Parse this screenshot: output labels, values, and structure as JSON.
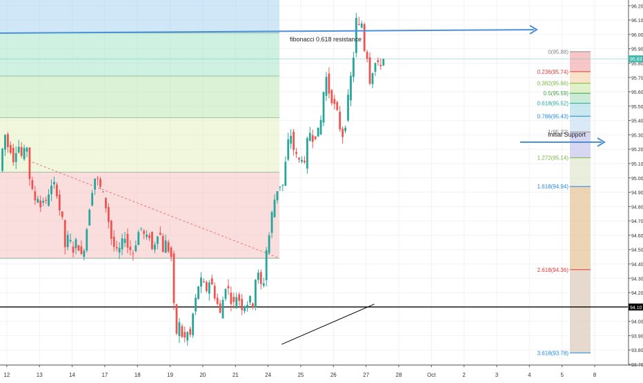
{
  "chart_data": {
    "type": "candlestick",
    "colors": {
      "up": "#26a69a",
      "down": "#ef5350",
      "trendline": "#000000",
      "arrow": "#4a90d9",
      "support_line": "#000000",
      "last_price_line": "#3fb8af",
      "dashed_trend": "#e57373"
    },
    "y_axis": {
      "ylim": [
        93.7,
        96.24
      ],
      "ticks": [
        "96.20",
        "96.10",
        "96.00",
        "95.90",
        "95.80",
        "95.70",
        "95.60",
        "95.50",
        "95.40",
        "95.30",
        "95.20",
        "95.10",
        "95.00",
        "94.90",
        "94.80",
        "94.70",
        "94.60",
        "94.50",
        "94.40",
        "94.30",
        "94.20",
        "94.10",
        "94.00",
        "93.90",
        "93.80",
        "93.70"
      ]
    },
    "x_axis": {
      "ticks": [
        {
          "label": "12",
          "i": 2
        },
        {
          "label": "13",
          "i": 14
        },
        {
          "label": "14",
          "i": 26
        },
        {
          "label": "17",
          "i": 38
        },
        {
          "label": "18",
          "i": 50
        },
        {
          "label": "19",
          "i": 62
        },
        {
          "label": "20",
          "i": 74
        },
        {
          "label": "21",
          "i": 86
        },
        {
          "label": "24",
          "i": 98
        },
        {
          "label": "25",
          "i": 110
        },
        {
          "label": "26",
          "i": 122
        },
        {
          "label": "27",
          "i": 134
        },
        {
          "label": "28",
          "i": 146
        },
        {
          "label": "Oct",
          "i": 158
        },
        {
          "label": "2",
          "i": 170
        },
        {
          "label": "3",
          "i": 182
        },
        {
          "label": "4",
          "i": 194
        },
        {
          "label": "5",
          "i": 206
        },
        {
          "label": "8",
          "i": 218
        }
      ]
    },
    "price_anchors": [
      [
        0,
        95.05
      ],
      [
        1,
        95.2
      ],
      [
        2,
        95.3
      ],
      [
        3,
        95.22
      ],
      [
        4,
        95.2
      ],
      [
        5,
        95.13
      ],
      [
        6,
        95.2
      ],
      [
        7,
        95.22
      ],
      [
        8,
        95.15
      ],
      [
        9,
        95.18
      ],
      [
        10,
        95.22
      ],
      [
        11,
        95.0
      ],
      [
        12,
        94.9
      ],
      [
        13,
        94.85
      ],
      [
        14,
        94.87
      ],
      [
        15,
        94.8
      ],
      [
        16,
        94.85
      ],
      [
        17,
        94.82
      ],
      [
        18,
        94.9
      ],
      [
        19,
        94.93
      ],
      [
        20,
        94.95
      ],
      [
        21,
        94.9
      ],
      [
        22,
        94.78
      ],
      [
        23,
        94.7
      ],
      [
        24,
        94.52
      ],
      [
        25,
        94.58
      ],
      [
        26,
        94.55
      ],
      [
        27,
        94.5
      ],
      [
        28,
        94.55
      ],
      [
        29,
        94.52
      ],
      [
        30,
        94.45
      ],
      [
        31,
        94.52
      ],
      [
        32,
        94.65
      ],
      [
        33,
        94.8
      ],
      [
        34,
        94.92
      ],
      [
        35,
        95.0
      ],
      [
        36,
        94.98
      ],
      [
        37,
        94.93
      ],
      [
        38,
        94.88
      ],
      [
        39,
        94.8
      ],
      [
        40,
        94.7
      ],
      [
        41,
        94.58
      ],
      [
        42,
        94.52
      ],
      [
        43,
        94.48
      ],
      [
        44,
        94.5
      ],
      [
        45,
        94.55
      ],
      [
        46,
        94.6
      ],
      [
        47,
        94.52
      ],
      [
        48,
        94.5
      ],
      [
        49,
        94.48
      ],
      [
        50,
        94.55
      ],
      [
        51,
        94.62
      ],
      [
        52,
        94.65
      ],
      [
        53,
        94.6
      ],
      [
        54,
        94.58
      ],
      [
        55,
        94.6
      ],
      [
        56,
        94.5
      ],
      [
        57,
        94.55
      ],
      [
        58,
        94.62
      ],
      [
        59,
        94.6
      ],
      [
        60,
        94.5
      ],
      [
        61,
        94.55
      ],
      [
        62,
        94.5
      ],
      [
        63,
        94.45
      ],
      [
        64,
        94.1
      ],
      [
        65,
        93.92
      ],
      [
        66,
        93.98
      ],
      [
        67,
        93.9
      ],
      [
        68,
        93.88
      ],
      [
        69,
        93.92
      ],
      [
        70,
        93.9
      ],
      [
        71,
        94.05
      ],
      [
        72,
        94.15
      ],
      [
        73,
        94.25
      ],
      [
        74,
        94.28
      ],
      [
        75,
        94.25
      ],
      [
        76,
        94.22
      ],
      [
        77,
        94.28
      ],
      [
        78,
        94.25
      ],
      [
        79,
        94.18
      ],
      [
        80,
        94.12
      ],
      [
        81,
        94.05
      ],
      [
        82,
        94.15
      ],
      [
        83,
        94.25
      ],
      [
        84,
        94.22
      ],
      [
        85,
        94.15
      ],
      [
        86,
        94.12
      ],
      [
        87,
        94.18
      ],
      [
        88,
        94.15
      ],
      [
        89,
        94.1
      ],
      [
        90,
        94.12
      ],
      [
        91,
        94.13
      ],
      [
        92,
        94.15
      ],
      [
        93,
        94.12
      ],
      [
        94,
        94.3
      ],
      [
        95,
        94.32
      ],
      [
        96,
        94.25
      ],
      [
        97,
        94.28
      ],
      [
        98,
        94.5
      ],
      [
        99,
        94.6
      ],
      [
        100,
        94.75
      ],
      [
        101,
        94.85
      ],
      [
        102,
        94.92
      ],
      [
        103,
        94.95
      ],
      [
        104,
        94.95
      ],
      [
        105,
        95.1
      ],
      [
        106,
        95.25
      ],
      [
        107,
        95.3
      ],
      [
        108,
        95.2
      ],
      [
        109,
        95.15
      ],
      [
        110,
        95.12
      ],
      [
        111,
        95.15
      ],
      [
        112,
        95.08
      ],
      [
        113,
        95.25
      ],
      [
        114,
        95.32
      ],
      [
        115,
        95.28
      ],
      [
        116,
        95.3
      ],
      [
        117,
        95.32
      ],
      [
        118,
        95.4
      ],
      [
        119,
        95.6
      ],
      [
        120,
        95.7
      ],
      [
        121,
        95.6
      ],
      [
        122,
        95.55
      ],
      [
        123,
        95.5
      ],
      [
        124,
        95.45
      ],
      [
        125,
        95.35
      ],
      [
        126,
        95.3
      ],
      [
        127,
        95.38
      ],
      [
        128,
        95.55
      ],
      [
        129,
        95.7
      ],
      [
        130,
        95.85
      ],
      [
        131,
        96.1
      ],
      [
        132,
        96.05
      ],
      [
        133,
        96.08
      ],
      [
        134,
        95.9
      ],
      [
        135,
        95.85
      ],
      [
        136,
        95.68
      ],
      [
        137,
        95.75
      ],
      [
        138,
        95.8
      ],
      [
        139,
        95.78
      ],
      [
        140,
        95.8
      ],
      [
        141,
        95.83
      ]
    ],
    "fib_left_zones": [
      {
        "from": 96.24,
        "to": 96.01,
        "color": "#a7d3f0"
      },
      {
        "from": 96.01,
        "to": 95.71,
        "color": "#a6e6c9"
      },
      {
        "from": 95.71,
        "to": 95.42,
        "color": "#c0e8b6"
      },
      {
        "from": 95.42,
        "to": 95.04,
        "color": "#e3f0c0"
      },
      {
        "from": 95.04,
        "to": 94.44,
        "color": "#f6c2c2"
      }
    ],
    "fib_right_levels": [
      {
        "label": "0(95.88)",
        "price": 95.88,
        "color": "#888888",
        "zone": "#f4b4b4"
      },
      {
        "label": "0.236(95.74)",
        "price": 95.74,
        "color": "#e53935",
        "zone": "#f4d9b4"
      },
      {
        "label": "0.382(95.66)",
        "price": 95.66,
        "color": "#7cb342",
        "zone": "#d6ecb8"
      },
      {
        "label": "0.5(95.59)",
        "price": 95.59,
        "color": "#43a047",
        "zone": "#b8e6c8"
      },
      {
        "label": "0.618(95.52)",
        "price": 95.52,
        "color": "#26a69a",
        "zone": "#b8e0ea"
      },
      {
        "label": "0.786(95.43)",
        "price": 95.43,
        "color": "#1e88e5",
        "zone": "#cde2f3"
      },
      {
        "label": "1(95.32)",
        "price": 95.32,
        "color": "#888888",
        "zone": "#c9c9ee"
      },
      {
        "label": "1.272(95.14)",
        "price": 95.14,
        "color": "#7cb342",
        "zone": "#e3e8d0"
      },
      {
        "label": "1.618(94.94)",
        "price": 94.94,
        "color": "#1e88e5",
        "zone": "#e5c69c"
      },
      {
        "label": "2.618(94.36)",
        "price": 94.36,
        "color": "#e53935",
        "zone": "#dccdbc"
      },
      {
        "label": "3.618(93.78)",
        "price": 93.78,
        "color": "#1e88e5",
        "zone": "#dccdbc"
      }
    ],
    "annotations": {
      "fib_resistance": "fibonacci 0.618 resistance",
      "initial_support": "Initial Support"
    },
    "axis_labels": {
      "support_price": "94.10",
      "last_price": "95.83"
    },
    "support_price": 94.1,
    "last_price": 95.83
  }
}
